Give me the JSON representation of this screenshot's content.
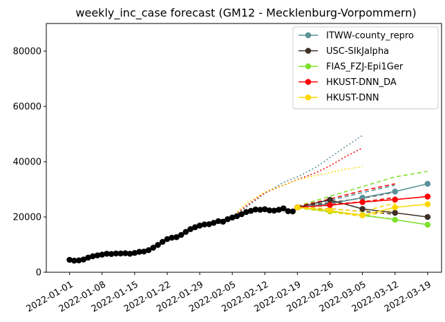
{
  "chart_data": {
    "type": "line",
    "title": "weekly_inc_case forecast (GM12 - Mecklenburg-Vorpommern)",
    "xlabel": "",
    "ylabel": "",
    "xlim": [
      "2021-12-27",
      "2022-03-22"
    ],
    "ylim": [
      0,
      90000
    ],
    "x_ticks": [
      "2022-01-01",
      "2022-01-08",
      "2022-01-15",
      "2022-01-22",
      "2022-01-29",
      "2022-02-05",
      "2022-02-12",
      "2022-02-19",
      "2022-02-26",
      "2022-03-05",
      "2022-03-12",
      "2022-03-19"
    ],
    "y_ticks": [
      0,
      20000,
      40000,
      60000,
      80000
    ],
    "legend_position": "top-right",
    "grid": false,
    "observed": {
      "color": "#000000",
      "x": [
        "2022-01-01",
        "2022-01-02",
        "2022-01-03",
        "2022-01-04",
        "2022-01-05",
        "2022-01-06",
        "2022-01-07",
        "2022-01-08",
        "2022-01-09",
        "2022-01-10",
        "2022-01-11",
        "2022-01-12",
        "2022-01-13",
        "2022-01-14",
        "2022-01-15",
        "2022-01-16",
        "2022-01-17",
        "2022-01-18",
        "2022-01-19",
        "2022-01-20",
        "2022-01-21",
        "2022-01-22",
        "2022-01-23",
        "2022-01-24",
        "2022-01-25",
        "2022-01-26",
        "2022-01-27",
        "2022-01-28",
        "2022-01-29",
        "2022-01-30",
        "2022-01-31",
        "2022-02-01",
        "2022-02-02",
        "2022-02-03",
        "2022-02-04",
        "2022-02-05",
        "2022-02-06",
        "2022-02-07",
        "2022-02-08",
        "2022-02-09",
        "2022-02-10",
        "2022-02-11",
        "2022-02-12",
        "2022-02-13",
        "2022-02-14",
        "2022-02-15",
        "2022-02-16",
        "2022-02-17",
        "2022-02-18",
        "2022-02-19"
      ],
      "y": [
        4500,
        4200,
        4300,
        4600,
        5300,
        5800,
        6100,
        6400,
        6700,
        6600,
        6800,
        6800,
        6900,
        6700,
        7000,
        7400,
        7500,
        8000,
        8900,
        9900,
        11000,
        12000,
        12500,
        12700,
        13500,
        14600,
        15600,
        16300,
        16900,
        17300,
        17400,
        17900,
        18500,
        18300,
        19200,
        19800,
        20300,
        21000,
        21800,
        22200,
        22700,
        22600,
        22800,
        22400,
        22300,
        22600,
        23100,
        22100,
        22000,
        23500
      ]
    },
    "series": [
      {
        "name": "ITWW-county_repro",
        "color": "#5b9297",
        "x": [
          "2022-02-19",
          "2022-02-26",
          "2022-03-05",
          "2022-03-12",
          "2022-03-19"
        ],
        "y": [
          23500,
          24800,
          27000,
          29200,
          32000
        ],
        "upper_dashed": [
          23700,
          26000,
          28800,
          31500
        ],
        "lower_dashed": [
          23300,
          24200,
          25500,
          27000
        ],
        "dotted_x": [
          "2022-02-05",
          "2022-02-08",
          "2022-02-12",
          "2022-02-16",
          "2022-02-19",
          "2022-02-23",
          "2022-02-26",
          "2022-03-01",
          "2022-03-05"
        ],
        "dotted_y": [
          20000,
          23500,
          28500,
          32500,
          34500,
          38000,
          41500,
          45000,
          49500
        ]
      },
      {
        "name": "USC-SIkJalpha",
        "color": "#3e2f27",
        "x": [
          "2022-02-19",
          "2022-02-26",
          "2022-03-05",
          "2022-03-12",
          "2022-03-19"
        ],
        "y": [
          23500,
          26200,
          22900,
          21500,
          20000
        ],
        "upper_dashed": [
          23700,
          25200,
          26800,
          29000
        ],
        "lower_dashed": [
          23300,
          23000,
          22000,
          21000
        ]
      },
      {
        "name": "FIAS_FZJ-Epi1Ger",
        "color": "#7ee02c",
        "x": [
          "2022-02-19",
          "2022-02-26",
          "2022-03-05",
          "2022-03-12",
          "2022-03-19"
        ],
        "y": [
          23500,
          22000,
          20700,
          19000,
          17200
        ],
        "upper_dashed": [
          23900,
          27500,
          31000,
          34500,
          36500
        ],
        "lower_dashed": [
          23200,
          21800,
          20500,
          19200
        ]
      },
      {
        "name": "HKUST-DNN_DA",
        "color": "#ff0000",
        "x": [
          "2022-02-19",
          "2022-02-26",
          "2022-03-05",
          "2022-03-12",
          "2022-03-19"
        ],
        "y": [
          23500,
          24300,
          25400,
          26300,
          27400
        ],
        "upper_dashed": [
          23800,
          26500,
          29500,
          32000
        ],
        "lower_dashed": [
          23300,
          24500,
          25500,
          27000
        ],
        "dotted_x": [
          "2022-02-05",
          "2022-02-08",
          "2022-02-12",
          "2022-02-16",
          "2022-02-19",
          "2022-02-23",
          "2022-02-26",
          "2022-03-01",
          "2022-03-05"
        ],
        "dotted_y": [
          20000,
          24000,
          28800,
          31500,
          33500,
          36000,
          38500,
          41500,
          45000
        ]
      },
      {
        "name": "HKUST-DNN",
        "color": "#ffd700",
        "x": [
          "2022-02-19",
          "2022-02-26",
          "2022-03-05",
          "2022-03-12",
          "2022-03-19"
        ],
        "y": [
          23500,
          22300,
          20600,
          23500,
          24600
        ],
        "upper_dashed": [
          23600,
          23000,
          22000,
          25000
        ],
        "lower_dashed": [
          23300,
          21800,
          20200,
          22500
        ],
        "dotted_x": [
          "2022-02-05",
          "2022-02-08",
          "2022-02-12",
          "2022-02-16",
          "2022-02-19",
          "2022-02-23",
          "2022-02-26",
          "2022-03-01",
          "2022-03-05"
        ],
        "dotted_y": [
          20000,
          25000,
          29000,
          31500,
          33500,
          35000,
          36000,
          37200,
          38200
        ]
      }
    ]
  }
}
